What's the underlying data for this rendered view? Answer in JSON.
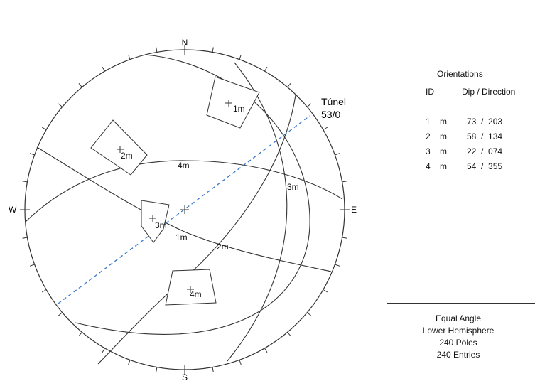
{
  "stereonet": {
    "compass": {
      "north": "N",
      "south": "S",
      "east": "E",
      "west": "W"
    },
    "tunnel_label": "Túnel",
    "tunnel_orientation": "53/0",
    "pole_labels": [
      "1m",
      "2m",
      "3m",
      "4m"
    ],
    "plane_labels": [
      "1m",
      "2m",
      "3m",
      "4m"
    ]
  },
  "orientations": {
    "title": "Orientations",
    "col_id": "ID",
    "col_dip_direction": "Dip / Direction",
    "rows": [
      {
        "id": "1",
        "type": "m",
        "value": "73  /  203"
      },
      {
        "id": "2",
        "type": "m",
        "value": "58  /  134"
      },
      {
        "id": "3",
        "type": "m",
        "value": "22  /  074"
      },
      {
        "id": "4",
        "type": "m",
        "value": "54  /  355"
      }
    ]
  },
  "projection_info": {
    "projection": "Equal Angle",
    "hemisphere": "Lower Hemisphere",
    "poles": "240 Poles",
    "entries": "240 Entries"
  }
}
